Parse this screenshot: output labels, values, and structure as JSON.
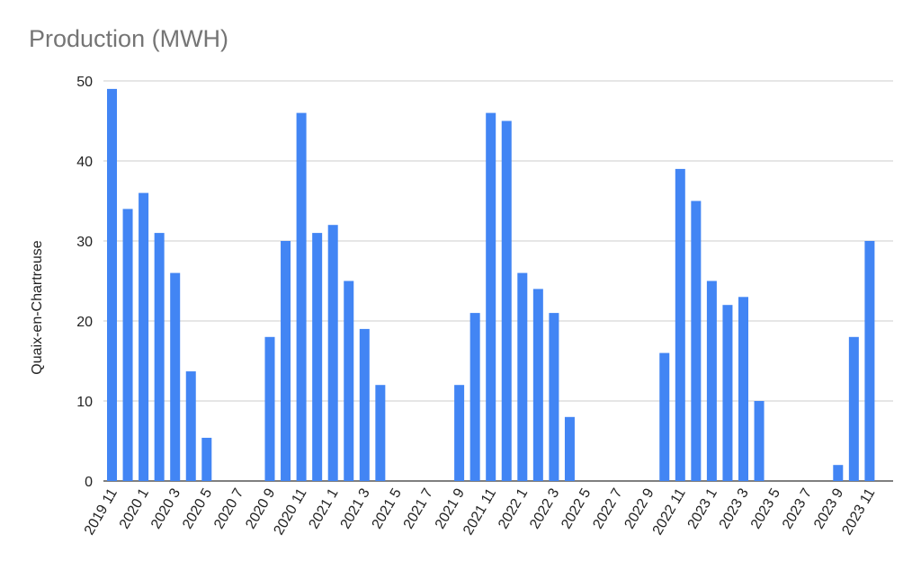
{
  "chart_data": {
    "type": "bar",
    "title": "Production (MWH)",
    "xlabel": "",
    "ylabel": "Quaix-en-Chartreuse",
    "ylim": [
      0,
      50
    ],
    "yticks": [
      0,
      10,
      20,
      30,
      40,
      50
    ],
    "grid": true,
    "legend": "none",
    "bar_color": "#4285f4",
    "categories": [
      "2019 11",
      "2019 12",
      "2020 1",
      "2020 2",
      "2020 3",
      "2020 4",
      "2020 5",
      "2020 6",
      "2020 7",
      "2020 8",
      "2020 9",
      "2020 10",
      "2020 11",
      "2020 12",
      "2021 1",
      "2021 2",
      "2021 3",
      "2021 4",
      "2021 5",
      "2021 6",
      "2021 7",
      "2021 8",
      "2021 9",
      "2021 10",
      "2021 11",
      "2021 12",
      "2022 1",
      "2022 2",
      "2022 3",
      "2022 4",
      "2022 5",
      "2022 6",
      "2022 7",
      "2022 8",
      "2022 9",
      "2022 10",
      "2022 11",
      "2022 12",
      "2023 1",
      "2023 2",
      "2023 3",
      "2023 4",
      "2023 5",
      "2023 6",
      "2023 7",
      "2023 8",
      "2023 9",
      "2023 10",
      "2023 11",
      "2023 12"
    ],
    "x_tick_labels": [
      "2019 11",
      "2020 1",
      "2020 3",
      "2020 5",
      "2020 7",
      "2020 9",
      "2020 11",
      "2021 1",
      "2021 3",
      "2021 5",
      "2021 7",
      "2021 9",
      "2021 11",
      "2022 1",
      "2022 3",
      "2022 5",
      "2022 7",
      "2022 9",
      "2022 11",
      "2023 1",
      "2023 3",
      "2023 5",
      "2023 7",
      "2023 9",
      "2023 11"
    ],
    "values": [
      49,
      34,
      36,
      31,
      26,
      13.7,
      5.4,
      0,
      0,
      0,
      18,
      30,
      46,
      31,
      32,
      25,
      19,
      12,
      0,
      0,
      0,
      0,
      12,
      21,
      46,
      45,
      26,
      24,
      21,
      8,
      0,
      0,
      0,
      0,
      0,
      16,
      39,
      35,
      25,
      22,
      23,
      10,
      0,
      0,
      0,
      0,
      2,
      18,
      30,
      0
    ]
  }
}
